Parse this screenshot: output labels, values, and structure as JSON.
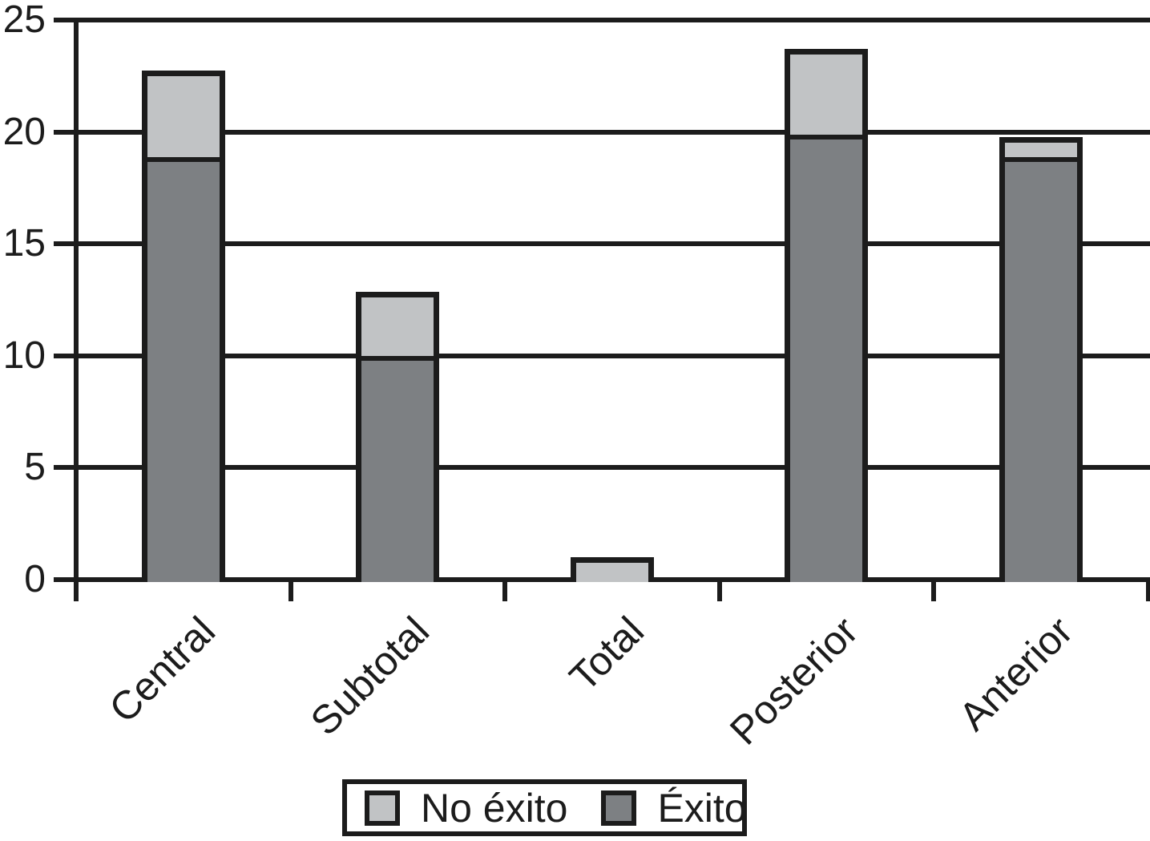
{
  "chart_data": {
    "type": "bar",
    "stacked": true,
    "title": "",
    "xlabel": "",
    "ylabel": "",
    "categories": [
      "Central",
      "Subtotal",
      "Total",
      "Posterior",
      "Anterior"
    ],
    "series": [
      {
        "name": "Éxito",
        "color": "#7d8083",
        "values": [
          19,
          10,
          0,
          20,
          19
        ]
      },
      {
        "name": "No éxito",
        "color": "#c1c3c5",
        "values": [
          4,
          3,
          1,
          4,
          1
        ]
      }
    ],
    "stack_order": "series[0] at bottom, series[1] on top",
    "totals": [
      23,
      13,
      1,
      24,
      20
    ],
    "ylim": [
      0,
      25
    ],
    "yticks": [
      "0",
      "5",
      "10",
      "15",
      "20",
      "25"
    ],
    "grid": true,
    "legend_position": "bottom",
    "bar_outline_color": "#1c1c1c"
  },
  "legend": {
    "items": [
      {
        "label": "No éxito",
        "color": "#c1c3c5"
      },
      {
        "label": "Éxito",
        "color": "#7d8083"
      }
    ]
  },
  "colors": {
    "axis_line": "#1c1c1c",
    "background": "#ffffff",
    "text": "#1c1c1c"
  }
}
